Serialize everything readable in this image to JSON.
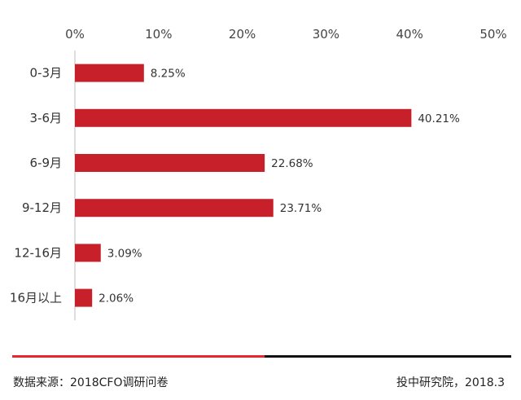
{
  "chart_data": {
    "type": "bar",
    "orientation": "horizontal",
    "categories": [
      "0-3月",
      "3-6月",
      "6-9月",
      "9-12月",
      "12-16月",
      "16月以上"
    ],
    "values": [
      8.25,
      40.21,
      22.68,
      23.71,
      3.09,
      2.06
    ],
    "data_labels": [
      "8.25%",
      "40.21%",
      "22.68%",
      "23.71%",
      "3.09%",
      "2.06%"
    ],
    "x_ticks": [
      "0%",
      "10%",
      "20%",
      "30%",
      "40%",
      "50%"
    ],
    "x_tick_values": [
      0,
      10,
      20,
      30,
      40,
      50
    ],
    "xlim": [
      0,
      50
    ],
    "x_axis_position": "top",
    "grid": false,
    "bar_color": "#c8202b"
  },
  "footer": {
    "source": "数据来源：2018CFO调研问卷",
    "publisher": "投中研究院，2018.3",
    "divider_colors": [
      "#e8262b",
      "#111111"
    ]
  }
}
